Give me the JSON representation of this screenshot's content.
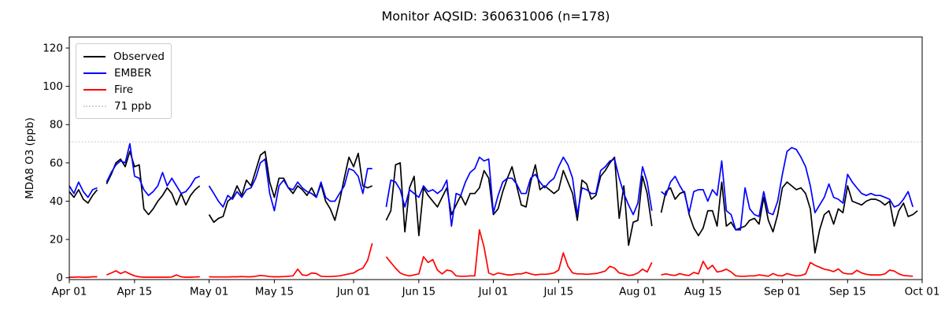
{
  "chart_data": {
    "type": "line",
    "title": "Monitor AQSID: 360631006 (n=178)",
    "ylabel": "MDA8 O3 (ppb)",
    "xlabel": "",
    "x_unit": "days since Apr 01",
    "x_range_days": 183,
    "ylim": [
      0,
      126
    ],
    "grid": false,
    "legend_position": "upper-left",
    "background": "#ffffff",
    "yticks": [
      0,
      20,
      40,
      60,
      80,
      100,
      120
    ],
    "xticks": [
      {
        "day": 0,
        "label": "Apr 01"
      },
      {
        "day": 14,
        "label": "Apr 15"
      },
      {
        "day": 30,
        "label": "May 01"
      },
      {
        "day": 44,
        "label": "May 15"
      },
      {
        "day": 61,
        "label": "Jun 01"
      },
      {
        "day": 75,
        "label": "Jun 15"
      },
      {
        "day": 91,
        "label": "Jul 01"
      },
      {
        "day": 105,
        "label": "Jul 15"
      },
      {
        "day": 122,
        "label": "Aug 01"
      },
      {
        "day": 136,
        "label": "Aug 15"
      },
      {
        "day": 153,
        "label": "Sep 01"
      },
      {
        "day": 167,
        "label": "Sep 15"
      },
      {
        "day": 183,
        "label": "Oct 01"
      }
    ],
    "threshold": {
      "value": 71,
      "label": "71 ppb",
      "color": "#d3d3d3",
      "style": "dotted"
    },
    "series": [
      {
        "name": "Observed",
        "color": "#000000",
        "values": [
          45,
          42,
          46,
          41,
          39,
          43,
          46,
          null,
          49,
          54,
          60,
          62,
          58,
          66,
          58,
          59,
          36,
          33,
          36,
          40,
          43,
          47,
          44,
          38,
          44,
          38,
          43,
          46,
          48,
          null,
          33,
          29,
          31,
          32,
          40,
          42,
          48,
          43,
          51,
          48,
          56,
          64,
          66,
          50,
          42,
          52,
          52,
          47,
          44,
          48,
          46,
          43,
          47,
          42,
          49,
          40,
          36,
          30,
          40,
          52,
          63,
          58,
          65,
          48,
          47,
          48,
          null,
          null,
          30,
          35,
          59,
          60,
          24,
          47,
          53,
          22,
          47,
          43,
          40,
          37,
          42,
          47,
          33,
          38,
          43,
          38,
          44,
          44,
          47,
          56,
          52,
          33,
          36,
          45,
          52,
          58,
          48,
          38,
          37,
          50,
          59,
          46,
          48,
          46,
          44,
          46,
          56,
          50,
          44,
          30,
          51,
          49,
          41,
          43,
          53,
          56,
          60,
          63,
          31,
          48,
          17,
          29,
          30,
          53,
          44,
          27,
          null,
          34,
          45,
          47,
          41,
          44,
          45,
          33,
          26,
          22,
          26,
          35,
          35,
          27,
          50,
          27,
          29,
          25,
          26,
          27,
          30,
          31,
          28,
          42,
          30,
          24,
          33,
          47,
          50,
          48,
          46,
          47,
          44,
          36,
          13,
          25,
          33,
          35,
          28,
          36,
          34,
          48,
          40,
          39,
          38,
          40,
          41,
          41,
          40,
          38,
          40,
          27,
          35,
          39,
          32,
          33,
          35,
          null
        ]
      },
      {
        "name": "EMBER",
        "color": "#0000ff",
        "values": [
          48,
          44,
          50,
          45,
          42,
          46,
          47,
          null,
          50,
          55,
          59,
          61,
          60,
          70,
          53,
          52,
          46,
          43,
          45,
          48,
          55,
          48,
          52,
          48,
          44,
          45,
          48,
          52,
          53,
          null,
          48,
          44,
          40,
          37,
          43,
          41,
          45,
          42,
          46,
          47,
          52,
          60,
          62,
          44,
          35,
          48,
          51,
          47,
          46,
          50,
          47,
          45,
          44,
          42,
          50,
          42,
          40,
          40,
          44,
          48,
          57,
          56,
          53,
          44,
          57,
          57,
          null,
          null,
          37,
          51,
          50,
          46,
          37,
          46,
          44,
          42,
          48,
          45,
          46,
          44,
          46,
          51,
          27,
          44,
          43,
          50,
          55,
          57,
          63,
          61,
          62,
          34,
          43,
          50,
          52,
          52,
          49,
          44,
          44,
          52,
          54,
          50,
          47,
          50,
          52,
          58,
          63,
          59,
          52,
          33,
          47,
          46,
          44,
          44,
          56,
          58,
          61,
          62,
          52,
          44,
          38,
          33,
          39,
          58,
          50,
          35,
          null,
          45,
          43,
          50,
          53,
          48,
          44,
          34,
          45,
          46,
          46,
          40,
          46,
          43,
          61,
          35,
          33,
          25,
          25,
          47,
          36,
          33,
          32,
          45,
          34,
          33,
          40,
          54,
          66,
          68,
          67,
          63,
          58,
          48,
          34,
          38,
          42,
          49,
          42,
          41,
          39,
          54,
          50,
          47,
          44,
          43,
          44,
          43,
          43,
          42,
          41,
          37,
          38,
          41,
          45,
          37,
          null,
          null
        ]
      },
      {
        "name": "Fire",
        "color": "#ff0000",
        "values": [
          0.3,
          0.3,
          0.4,
          0.3,
          0.3,
          0.5,
          0.5,
          null,
          1.5,
          2.5,
          3.6,
          2.2,
          3.2,
          2,
          1,
          0.5,
          0.3,
          0.3,
          0.3,
          0.3,
          0.3,
          0.3,
          0.4,
          1.5,
          0.5,
          0.3,
          0.3,
          0.4,
          0.5,
          null,
          0.5,
          0.4,
          0.4,
          0.4,
          0.4,
          0.5,
          0.5,
          0.6,
          0.5,
          0.5,
          0.8,
          1.2,
          1,
          0.6,
          0.5,
          0.5,
          0.6,
          0.8,
          1,
          4.5,
          1.5,
          1.2,
          2.5,
          2.2,
          0.8,
          0.6,
          0.6,
          0.8,
          1,
          1.5,
          2,
          2.5,
          4,
          5,
          9,
          18,
          null,
          null,
          11,
          8,
          5,
          2.5,
          1.5,
          1,
          1.5,
          2,
          11,
          8,
          9.5,
          4,
          2,
          4,
          3.5,
          1,
          0.8,
          0.8,
          1,
          1,
          25,
          16,
          2.5,
          1.5,
          2.5,
          2,
          1.5,
          1.5,
          2,
          2,
          2.8,
          2,
          1.5,
          1.8,
          1.8,
          2,
          2.5,
          4,
          13,
          6,
          2.5,
          2,
          2,
          1.8,
          2,
          2.2,
          2.8,
          3.5,
          6,
          5,
          2.5,
          2,
          1.2,
          1.5,
          2.5,
          4.5,
          3,
          8,
          null,
          1.5,
          2,
          1.5,
          1.2,
          2.2,
          1.5,
          1.2,
          2.8,
          2,
          8.6,
          4.5,
          6.5,
          3,
          3.5,
          4.5,
          3,
          1,
          0.8,
          0.8,
          1,
          1,
          1.5,
          1.2,
          0.8,
          2.2,
          1.2,
          1,
          2.2,
          1.5,
          1,
          1.2,
          2,
          8,
          6.5,
          5.5,
          4.5,
          4,
          3.2,
          4.6,
          2.5,
          2,
          2,
          3.9,
          2.5,
          1.8,
          1.5,
          1.5,
          1.5,
          2,
          4,
          3.5,
          2,
          1.2,
          1,
          0.8,
          null,
          null
        ]
      }
    ]
  }
}
